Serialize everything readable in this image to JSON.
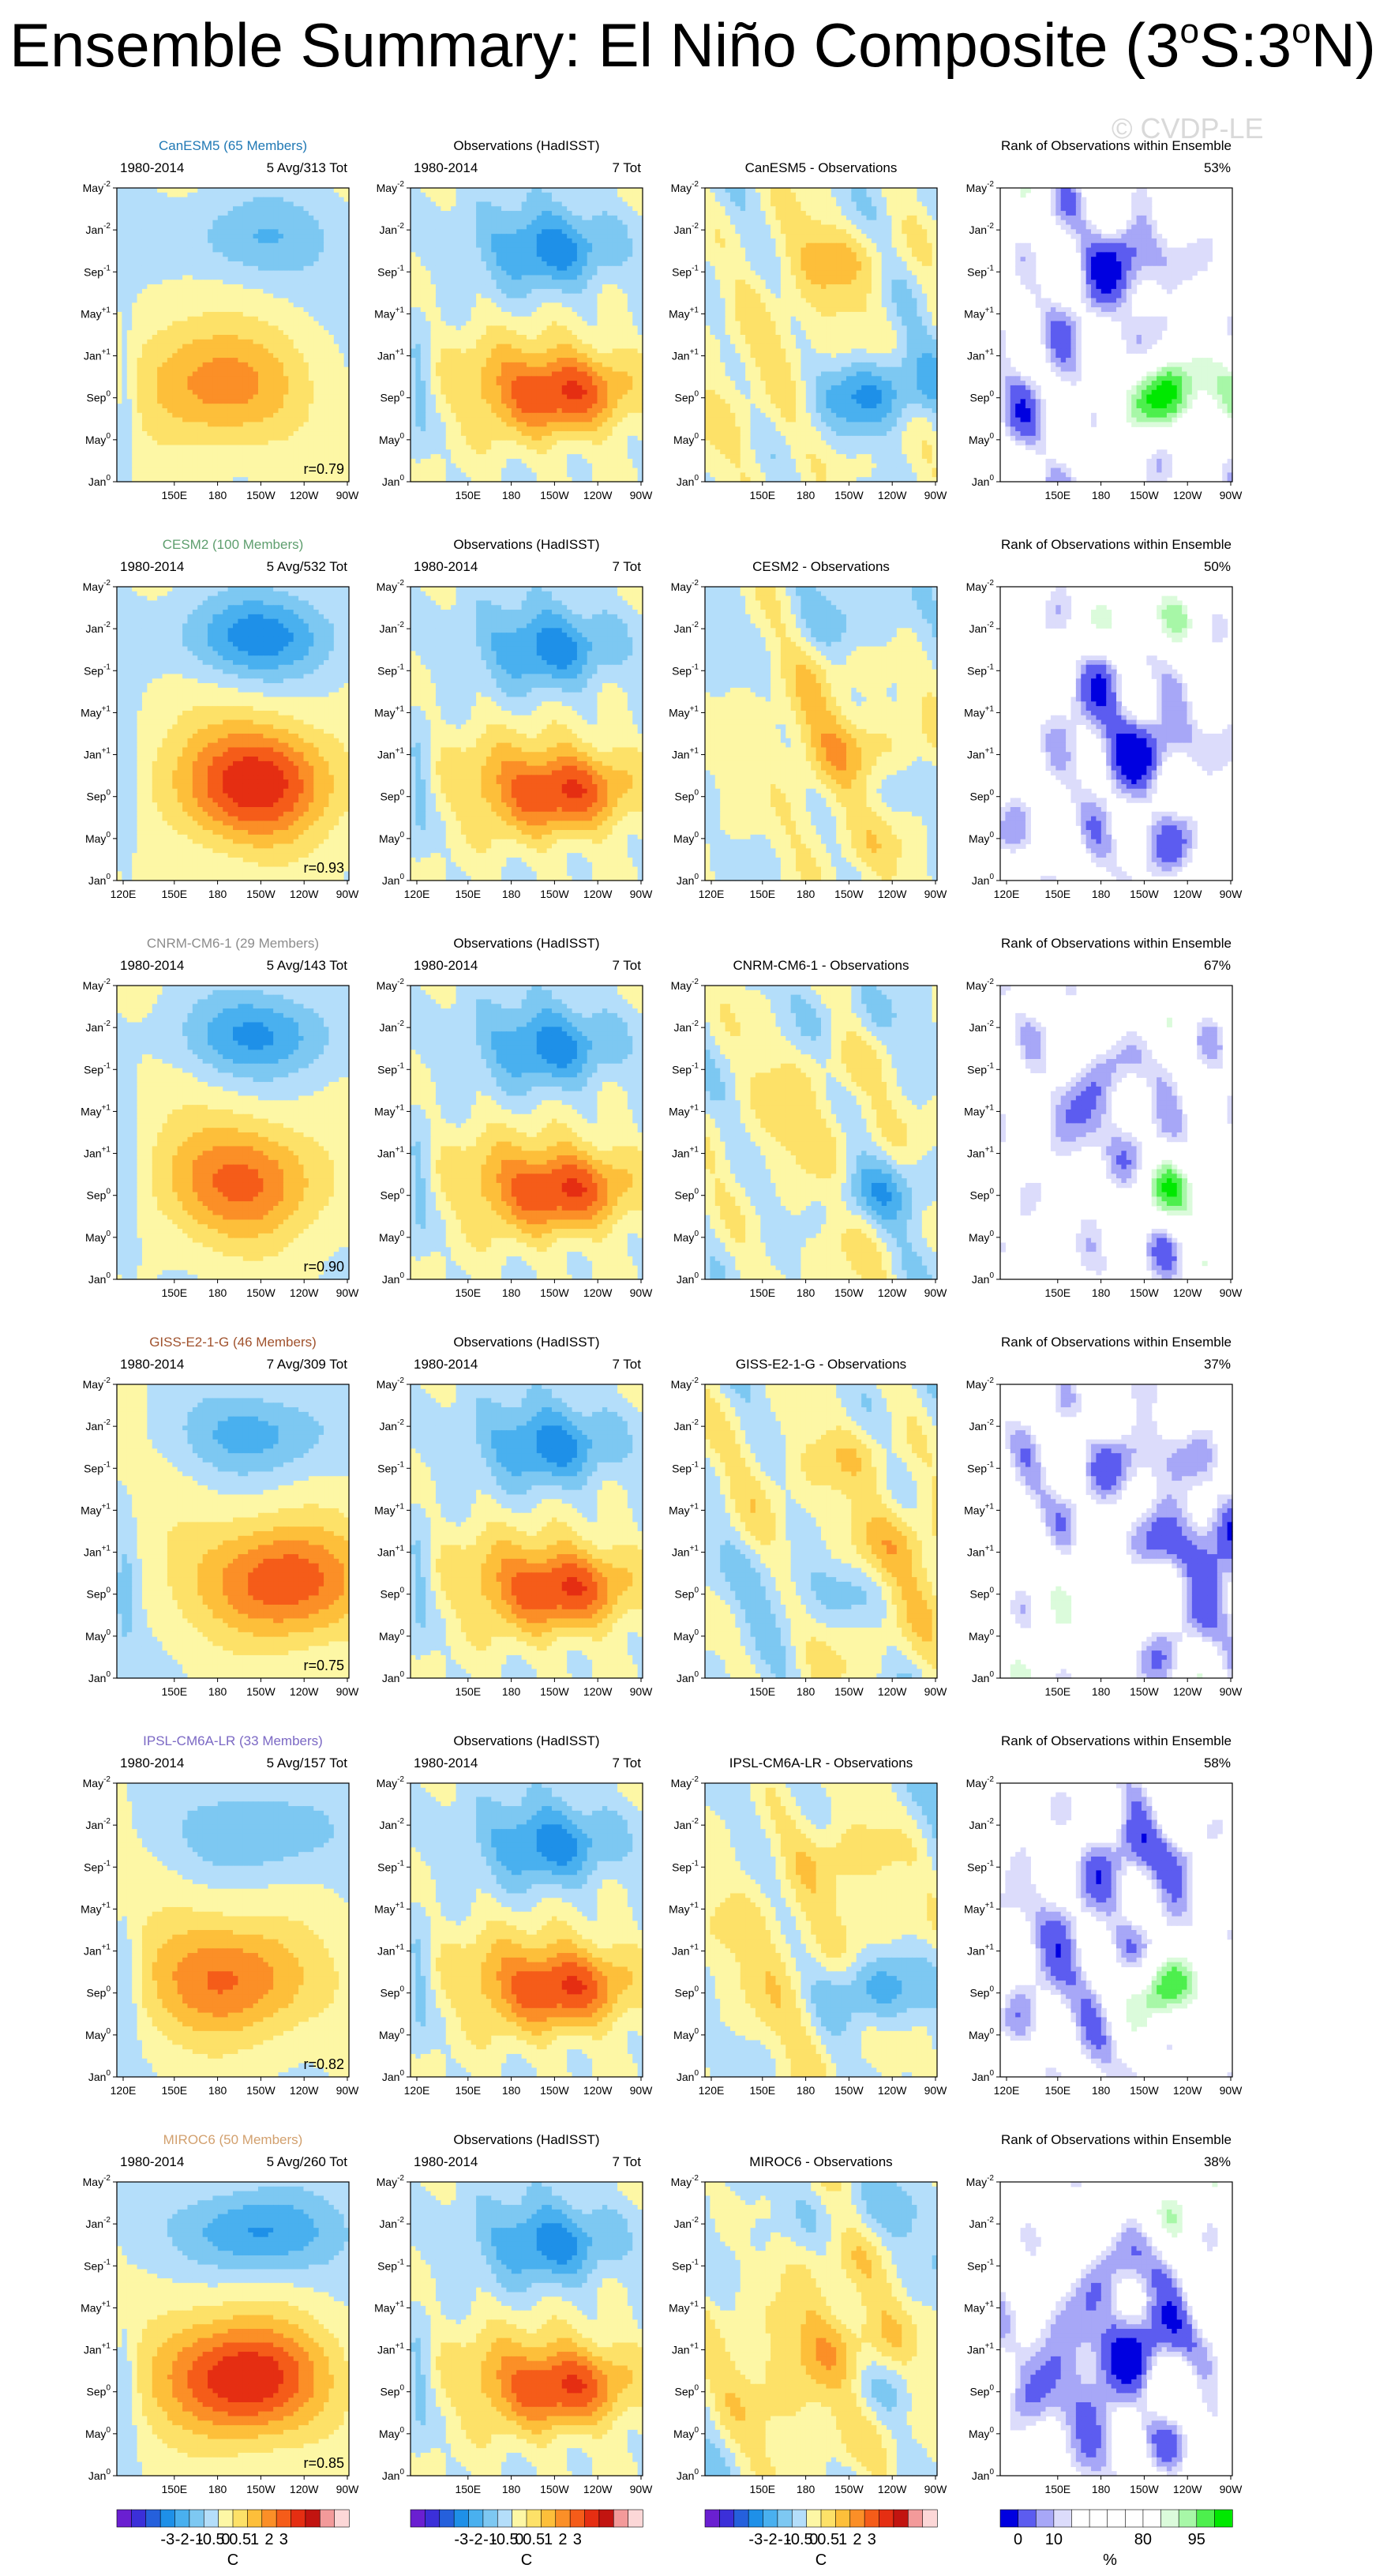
{
  "figure": {
    "title": "Ensemble Summary: El Niño Composite (3°S:3°N)",
    "title_parts": {
      "prefix": "Ensemble Summary: El Niño Composite (3",
      "sup1": "o",
      "mid": "S:3",
      "sup2": "o",
      "suffix": "N)"
    },
    "copyright": "© CVDP-LE"
  },
  "common": {
    "period": "1980-2014",
    "obs_title": "Observations (HadISST)",
    "obs_count": "7 Tot",
    "rank_title": "Rank of Observations within Ensemble",
    "diff_suffix": " - Observations"
  },
  "axes": {
    "y_ticks": [
      {
        "base": "May",
        "sup": "-2"
      },
      {
        "base": "Jan",
        "sup": "-2"
      },
      {
        "base": "Sep",
        "sup": "-1"
      },
      {
        "base": "May",
        "sup": "+1"
      },
      {
        "base": "Jan",
        "sup": "+1"
      },
      {
        "base": "Sep",
        "sup": "0"
      },
      {
        "base": "May",
        "sup": "0"
      },
      {
        "base": "Jan",
        "sup": "0"
      }
    ],
    "x_ticks": [
      "120E",
      "150E",
      "180",
      "150W",
      "120W",
      "90W"
    ]
  },
  "models": [
    {
      "name": "CanESM5",
      "members": "CanESM5 (65 Members)",
      "color": "#1f78b4",
      "count": "5 Avg/313 Tot",
      "r": "r=0.79",
      "rank_pct": "53%",
      "show_120e": false
    },
    {
      "name": "CESM2",
      "members": "CESM2 (100 Members)",
      "color": "#5e9e6e",
      "count": "5 Avg/532 Tot",
      "r": "r=0.93",
      "rank_pct": "50%",
      "show_120e": true
    },
    {
      "name": "CNRM-CM6-1",
      "members": "CNRM-CM6-1 (29 Members)",
      "color": "#8c8c8c",
      "count": "5 Avg/143 Tot",
      "r": "r=0.90",
      "rank_pct": "67%",
      "show_120e": false
    },
    {
      "name": "GISS-E2-1-G",
      "members": "GISS-E2-1-G (46 Members)",
      "color": "#a0522d",
      "count": "7 Avg/309 Tot",
      "r": "r=0.75",
      "rank_pct": "37%",
      "show_120e": false
    },
    {
      "name": "IPSL-CM6A-LR",
      "members": "IPSL-CM6A-LR (33 Members)",
      "color": "#7b68c4",
      "count": "5 Avg/157 Tot",
      "r": "r=0.82",
      "rank_pct": "58%",
      "show_120e": true
    },
    {
      "name": "MIROC6",
      "members": "MIROC6 (50 Members)",
      "color": "#d2a06e",
      "count": "5 Avg/260 Tot",
      "r": "r=0.85",
      "rank_pct": "38%",
      "show_120e": false
    }
  ],
  "colorbars": {
    "sst": {
      "labels": [
        "-3",
        "-2",
        "-1",
        "-0.5",
        "0",
        "0.5",
        "1",
        "2",
        "3"
      ],
      "unit": "C",
      "colors": [
        "#6a1fd1",
        "#3b2fd9",
        "#2560dc",
        "#1e90e8",
        "#49b0ef",
        "#7dc8f2",
        "#b4defa",
        "#fdf7a5",
        "#fde168",
        "#fdbf3a",
        "#fb8f27",
        "#f55c19",
        "#e52e12",
        "#c21410",
        "#f39a9a",
        "#fcd7d7"
      ]
    },
    "rank": {
      "labels": [
        "0",
        "10",
        "80",
        "95"
      ],
      "unit": "%",
      "colors": [
        "#0000e0",
        "#5c5cf0",
        "#a7a7f7",
        "#dcdcfb",
        "#ffffff",
        "#ffffff",
        "#ffffff",
        "#ffffff",
        "#ffffff",
        "#dbfbdb",
        "#a7f7a7",
        "#4def4d",
        "#00e800"
      ]
    }
  },
  "chart_data": {
    "type": "heatmap",
    "description_of_panels": [
      "model ensemble composite",
      "observations",
      "model minus observations",
      "rank of observations within ensemble"
    ],
    "x_axis": [
      "120E",
      "150E",
      "180",
      "150W",
      "120W",
      "90W"
    ],
    "y_axis": [
      "Jan0",
      "May0",
      "Sep0",
      "Jan+1",
      "May+1",
      "Sep-1",
      "Jan-2",
      "May-2"
    ],
    "pattern_correlations": [
      {
        "model": "CanESM5",
        "r": 0.79,
        "rank_percent": 53
      },
      {
        "model": "CESM2",
        "r": 0.93,
        "rank_percent": 50
      },
      {
        "model": "CNRM-CM6-1",
        "r": 0.9,
        "rank_percent": 67
      },
      {
        "model": "GISS-E2-1-G",
        "r": 0.75,
        "rank_percent": 37
      },
      {
        "model": "IPSL-CM6A-LR",
        "r": 0.82,
        "rank_percent": 58
      },
      {
        "model": "MIROC6",
        "r": 0.85,
        "rank_percent": 38
      }
    ],
    "sst_levels_C": [
      -3,
      -2,
      -1,
      -0.5,
      0,
      0.5,
      1,
      2,
      3
    ],
    "rank_levels_pct": [
      0,
      10,
      80,
      95
    ]
  }
}
